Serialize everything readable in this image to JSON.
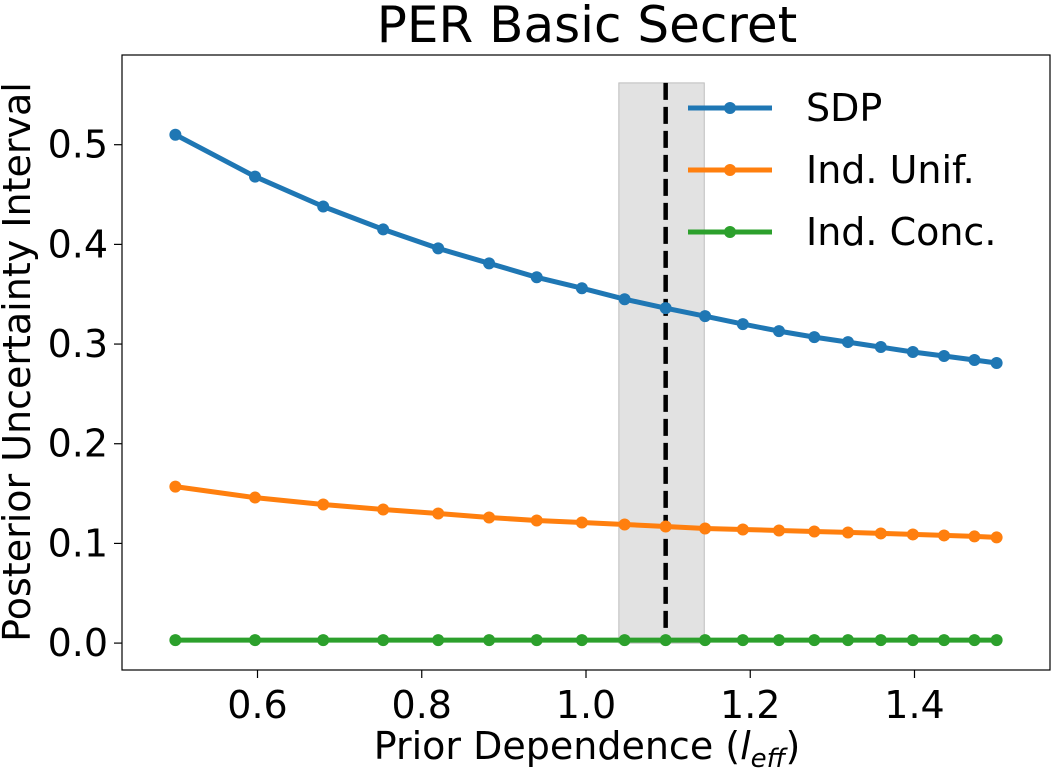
{
  "chart_data": {
    "type": "line",
    "title": "PER Basic Secret",
    "xlabel_main": "Prior Dependence (",
    "xlabel_var": "l",
    "xlabel_sub": "eff",
    "xlabel_close": ")",
    "ylabel": "Posterior Uncertainty Interval",
    "xlim": [
      0.435,
      1.565
    ],
    "ylim": [
      -0.027,
      0.59
    ],
    "xticks": [
      0.6,
      0.8,
      1.0,
      1.2,
      1.4
    ],
    "xtick_labels": [
      "0.6",
      "0.8",
      "1.0",
      "1.2",
      "1.4"
    ],
    "yticks": [
      0.0,
      0.1,
      0.2,
      0.3,
      0.4,
      0.5
    ],
    "ytick_labels": [
      "0.0",
      "0.1",
      "0.2",
      "0.3",
      "0.4",
      "0.5"
    ],
    "x": [
      0.5,
      0.597,
      0.68,
      0.753,
      0.82,
      0.882,
      0.94,
      0.995,
      1.047,
      1.097,
      1.145,
      1.191,
      1.235,
      1.278,
      1.319,
      1.359,
      1.398,
      1.436,
      1.473,
      1.5
    ],
    "series": [
      {
        "name": "SDP",
        "color": "#1f77b4",
        "values": [
          0.51,
          0.468,
          0.438,
          0.415,
          0.396,
          0.381,
          0.367,
          0.356,
          0.345,
          0.336,
          0.328,
          0.32,
          0.313,
          0.307,
          0.302,
          0.297,
          0.292,
          0.288,
          0.284,
          0.281
        ]
      },
      {
        "name": "Ind. Unif.",
        "color": "#ff7f0e",
        "values": [
          0.157,
          0.146,
          0.139,
          0.134,
          0.13,
          0.126,
          0.123,
          0.121,
          0.119,
          0.117,
          0.115,
          0.114,
          0.113,
          0.112,
          0.111,
          0.11,
          0.109,
          0.108,
          0.107,
          0.106
        ]
      },
      {
        "name": "Ind. Conc.",
        "color": "#2ca02c",
        "values": [
          0.003,
          0.003,
          0.003,
          0.003,
          0.003,
          0.003,
          0.003,
          0.003,
          0.003,
          0.003,
          0.003,
          0.003,
          0.003,
          0.003,
          0.003,
          0.003,
          0.003,
          0.003,
          0.003,
          0.003
        ]
      }
    ],
    "vline": {
      "x": 1.097,
      "color": "#000000",
      "style": "dashed"
    },
    "band": {
      "x_min": 1.04,
      "x_max": 1.144,
      "color": "#d3d3d3"
    },
    "legend_position": "top-right",
    "grid": false
  }
}
